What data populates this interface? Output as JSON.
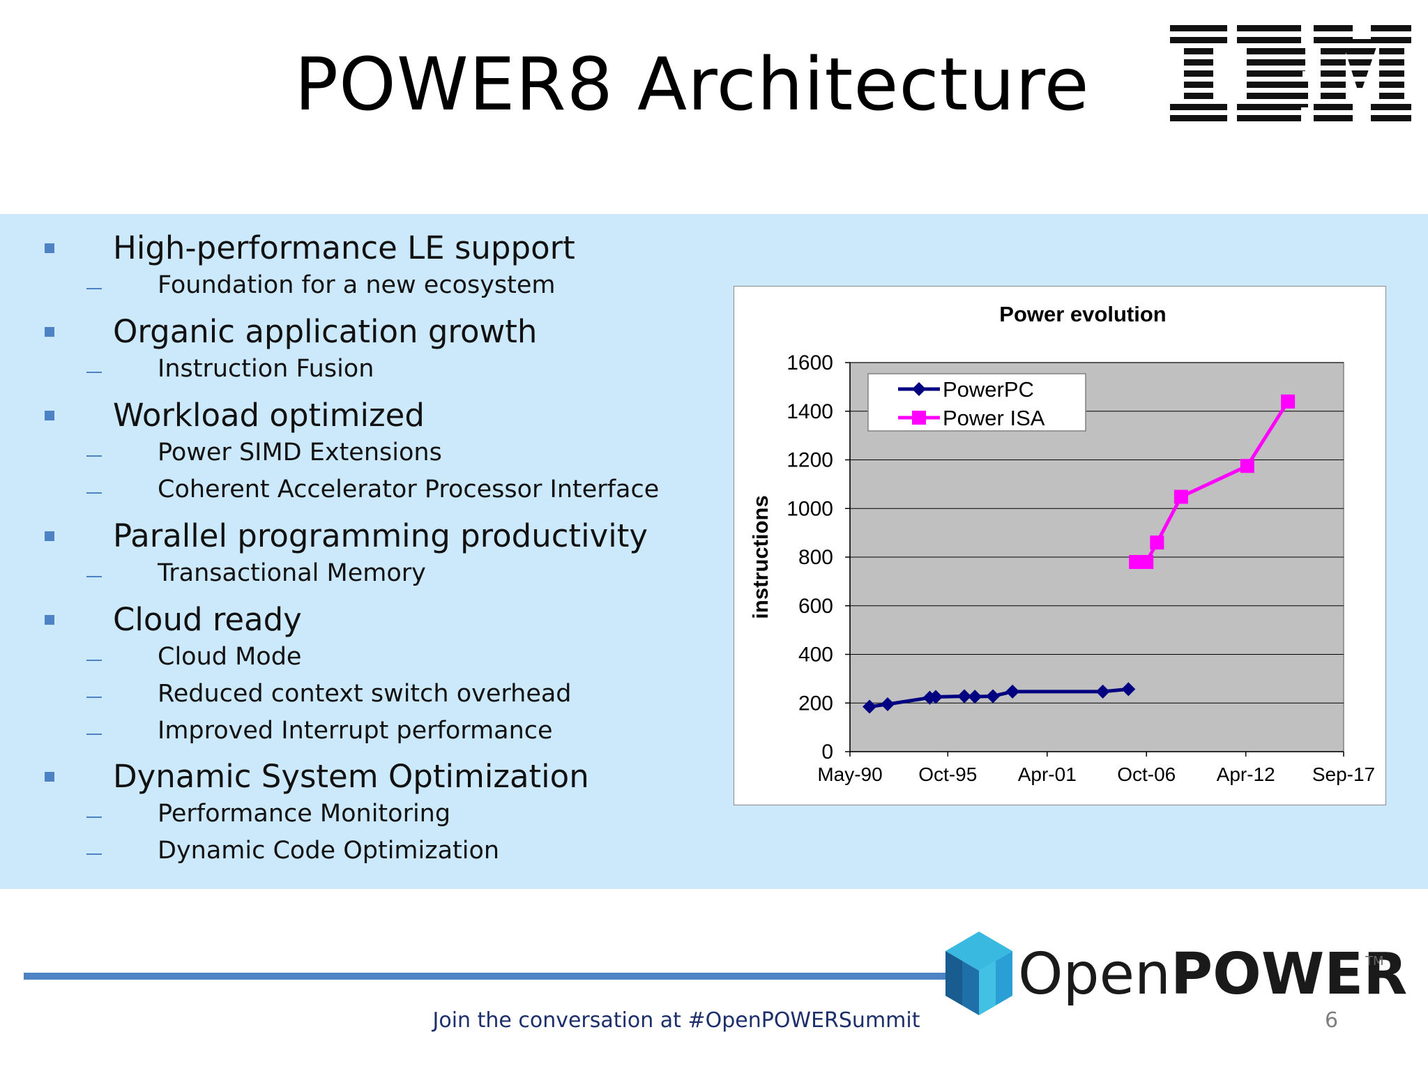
{
  "slide": {
    "title": "POWER8 Architecture",
    "logo": "IBM",
    "bullets": [
      {
        "text": "High-performance LE support",
        "subs": [
          "Foundation for a new ecosystem"
        ]
      },
      {
        "text": "Organic application growth",
        "subs": [
          "Instruction Fusion"
        ]
      },
      {
        "text": "Workload optimized",
        "subs": [
          "Power SIMD Extensions",
          "Coherent Accelerator Processor Interface"
        ]
      },
      {
        "text": "Parallel programming productivity",
        "subs": [
          "Transactional Memory"
        ]
      },
      {
        "text": "Cloud ready",
        "subs": [
          "Cloud Mode",
          "Reduced context switch overhead",
          "Improved Interrupt performance"
        ]
      },
      {
        "text": "Dynamic System Optimization",
        "subs": [
          "Performance Monitoring",
          "Dynamic Code Optimization"
        ]
      }
    ]
  },
  "chart_data": {
    "type": "line",
    "title": "Power evolution",
    "ylabel": "instructions",
    "xlabel": "",
    "ylim": [
      0,
      1600
    ],
    "yticks": [
      0,
      200,
      400,
      600,
      800,
      1000,
      1200,
      1400,
      1600
    ],
    "xlim": [
      "1990-05",
      "2017-09"
    ],
    "xticks": [
      "May-90",
      "Oct-95",
      "Apr-01",
      "Oct-06",
      "Apr-12",
      "Sep-17"
    ],
    "grid": true,
    "plot_background": "#c0c0c0",
    "legend_position": "top-left",
    "series": [
      {
        "name": "PowerPC",
        "color": "#000080",
        "marker": "diamond",
        "points": [
          [
            "1991-06",
            185
          ],
          [
            "1992-06",
            195
          ],
          [
            "1994-10",
            222
          ],
          [
            "1995-02",
            225
          ],
          [
            "1996-09",
            228
          ],
          [
            "1997-04",
            226
          ],
          [
            "1998-04",
            228
          ],
          [
            "1999-05",
            247
          ],
          [
            "2004-05",
            247
          ],
          [
            "2005-10",
            257
          ]
        ]
      },
      {
        "name": "Power ISA",
        "color": "#ff00ff",
        "marker": "square",
        "points": [
          [
            "2006-03",
            780
          ],
          [
            "2006-10",
            780
          ],
          [
            "2007-05",
            860
          ],
          [
            "2008-09",
            1048
          ],
          [
            "2012-05",
            1175
          ],
          [
            "2014-08",
            1440
          ]
        ]
      }
    ]
  },
  "footer": {
    "brand_light": "Open",
    "brand_bold": "POWER",
    "trademark": "TM",
    "tagline": "Join the conversation at #OpenPOWERSummit",
    "page_number": "6",
    "line_color": "#4d82c4"
  }
}
